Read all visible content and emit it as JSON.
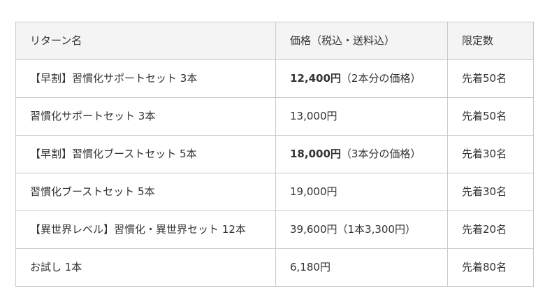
{
  "palette": {
    "header_bg": "#f4f4f4",
    "border": "#c9c9c9",
    "text": "#333333",
    "page_bg": "#ffffff"
  },
  "table": {
    "headers": {
      "name": "リターン名",
      "price": "価格（税込・送料込）",
      "limit": "限定数"
    },
    "rows": [
      {
        "name": "【早割】習慣化サポートセット 3本",
        "price_bold": "12,400円",
        "price_rest": "（2本分の価格）",
        "limit": "先着50名"
      },
      {
        "name": "習慣化サポートセット 3本",
        "price_bold": "",
        "price_rest": "13,000円",
        "limit": "先着50名"
      },
      {
        "name": "【早割】習慣化ブーストセット 5本",
        "price_bold": "18,000円",
        "price_rest": "（3本分の価格）",
        "limit": "先着30名"
      },
      {
        "name": "習慣化ブーストセット 5本",
        "price_bold": "",
        "price_rest": "19,000円",
        "limit": "先着30名"
      },
      {
        "name": "【異世界レベル】習慣化・異世界セット 12本",
        "price_bold": "",
        "price_rest": "39,600円（1本3,300円）",
        "limit": "先着20名"
      },
      {
        "name": "お試し 1本",
        "price_bold": "",
        "price_rest": "6,180円",
        "limit": "先着80名"
      }
    ]
  }
}
